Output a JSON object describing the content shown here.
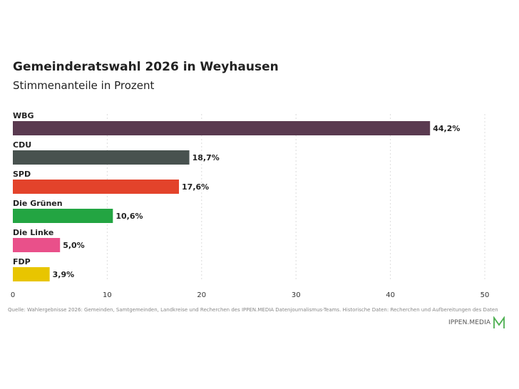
{
  "chart_data": {
    "type": "bar",
    "orientation": "horizontal",
    "title": "Gemeinderatswahl 2026 in Weyhausen",
    "subtitle": "Stimmenanteile in Prozent",
    "categories": [
      "WBG",
      "CDU",
      "SPD",
      "Die Grünen",
      "Die Linke",
      "FDP"
    ],
    "values": [
      44.2,
      18.7,
      17.6,
      10.6,
      5.0,
      3.9
    ],
    "value_labels": [
      "44,2%",
      "18,7%",
      "17,6%",
      "10,6%",
      "5,0%",
      "3,9%"
    ],
    "colors": [
      "#5a3a50",
      "#48524f",
      "#e3432b",
      "#23a542",
      "#e9508a",
      "#e8c500"
    ],
    "xlim": [
      0,
      50
    ],
    "x_ticks": [
      "0",
      "10",
      "20",
      "30",
      "40",
      "50"
    ],
    "grid": true,
    "legend": "none"
  },
  "source": "Quelle: Wahlergebnisse 2026: Gemeinden, Samtgemeinden, Landkreise und Recherchen des IPPEN.MEDIA Datenjournalismus-Teams. Historische Daten: Recherchen und Aufbereitungen des Daten",
  "logo": {
    "text": "IPPEN.MEDIA",
    "color": "#4caf50"
  }
}
